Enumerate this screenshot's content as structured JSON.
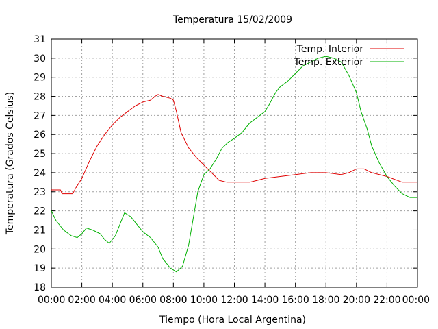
{
  "chart_data": {
    "type": "line",
    "title": "Temperatura 15/02/2009",
    "xlabel": "Tiempo (Hora Local Argentina)",
    "ylabel": "Temperatura (Grados Celsius)",
    "xlim": [
      0,
      24
    ],
    "ylim": [
      18,
      31
    ],
    "x_tick_labels": [
      "00:00",
      "02:00",
      "04:00",
      "06:00",
      "08:00",
      "10:00",
      "12:00",
      "14:00",
      "16:00",
      "18:00",
      "20:00",
      "22:00",
      "00:00"
    ],
    "y_ticks": [
      18,
      19,
      20,
      21,
      22,
      23,
      24,
      25,
      26,
      27,
      28,
      29,
      30,
      31
    ],
    "grid": true,
    "legend": "top-right",
    "series": [
      {
        "name": "Temp. Interior",
        "color": "#e00000",
        "points": [
          [
            0,
            23.1
          ],
          [
            0.6,
            23.1
          ],
          [
            0.7,
            22.9
          ],
          [
            1.4,
            22.9
          ],
          [
            1.6,
            23.2
          ],
          [
            2.0,
            23.7
          ],
          [
            2.5,
            24.6
          ],
          [
            3.0,
            25.4
          ],
          [
            3.5,
            26.0
          ],
          [
            4.0,
            26.5
          ],
          [
            4.5,
            26.9
          ],
          [
            5.0,
            27.2
          ],
          [
            5.5,
            27.5
          ],
          [
            6.0,
            27.7
          ],
          [
            6.5,
            27.8
          ],
          [
            6.8,
            28.0
          ],
          [
            7.0,
            28.1
          ],
          [
            7.3,
            28.0
          ],
          [
            7.8,
            27.9
          ],
          [
            8.0,
            27.8
          ],
          [
            8.2,
            27.2
          ],
          [
            8.5,
            26.1
          ],
          [
            9.0,
            25.3
          ],
          [
            9.5,
            24.8
          ],
          [
            10.0,
            24.4
          ],
          [
            10.5,
            24.0
          ],
          [
            11.0,
            23.6
          ],
          [
            11.5,
            23.5
          ],
          [
            12.0,
            23.5
          ],
          [
            13.0,
            23.5
          ],
          [
            13.5,
            23.6
          ],
          [
            14.0,
            23.7
          ],
          [
            15.0,
            23.8
          ],
          [
            16.0,
            23.9
          ],
          [
            17.0,
            24.0
          ],
          [
            18.0,
            24.0
          ],
          [
            19.0,
            23.9
          ],
          [
            19.5,
            24.0
          ],
          [
            20.0,
            24.2
          ],
          [
            20.5,
            24.2
          ],
          [
            21.0,
            24.0
          ],
          [
            22.0,
            23.8
          ],
          [
            23.0,
            23.5
          ],
          [
            24.0,
            23.5
          ]
        ]
      },
      {
        "name": "Temp. Exterior",
        "color": "#00b000",
        "points": [
          [
            0,
            22.0
          ],
          [
            0.3,
            21.5
          ],
          [
            0.8,
            21.0
          ],
          [
            1.3,
            20.7
          ],
          [
            1.7,
            20.6
          ],
          [
            2.0,
            20.8
          ],
          [
            2.3,
            21.1
          ],
          [
            2.7,
            21.0
          ],
          [
            3.2,
            20.8
          ],
          [
            3.5,
            20.5
          ],
          [
            3.8,
            20.3
          ],
          [
            4.2,
            20.7
          ],
          [
            4.5,
            21.3
          ],
          [
            4.8,
            21.9
          ],
          [
            5.2,
            21.7
          ],
          [
            5.6,
            21.3
          ],
          [
            6.0,
            20.9
          ],
          [
            6.5,
            20.6
          ],
          [
            7.0,
            20.1
          ],
          [
            7.3,
            19.5
          ],
          [
            7.8,
            19.0
          ],
          [
            8.2,
            18.8
          ],
          [
            8.6,
            19.1
          ],
          [
            9.0,
            20.2
          ],
          [
            9.3,
            21.6
          ],
          [
            9.6,
            23.0
          ],
          [
            10.0,
            23.9
          ],
          [
            10.4,
            24.2
          ],
          [
            10.8,
            24.7
          ],
          [
            11.2,
            25.3
          ],
          [
            11.6,
            25.6
          ],
          [
            12.0,
            25.8
          ],
          [
            12.5,
            26.1
          ],
          [
            13.0,
            26.6
          ],
          [
            13.5,
            26.9
          ],
          [
            14.0,
            27.2
          ],
          [
            14.3,
            27.6
          ],
          [
            14.7,
            28.2
          ],
          [
            15.0,
            28.5
          ],
          [
            15.5,
            28.8
          ],
          [
            16.0,
            29.2
          ],
          [
            16.5,
            29.6
          ],
          [
            17.0,
            29.8
          ],
          [
            17.5,
            30.0
          ],
          [
            18.0,
            30.1
          ],
          [
            18.5,
            30.0
          ],
          [
            19.0,
            29.8
          ],
          [
            19.5,
            29.1
          ],
          [
            20.0,
            28.2
          ],
          [
            20.3,
            27.2
          ],
          [
            20.7,
            26.3
          ],
          [
            21.0,
            25.4
          ],
          [
            21.5,
            24.5
          ],
          [
            22.0,
            23.8
          ],
          [
            22.5,
            23.3
          ],
          [
            23.0,
            22.9
          ],
          [
            23.5,
            22.7
          ],
          [
            24.0,
            22.7
          ]
        ]
      }
    ]
  }
}
